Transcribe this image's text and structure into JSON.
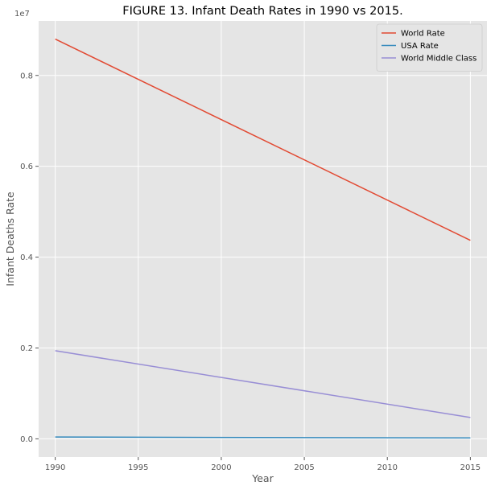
{
  "chart_data": {
    "type": "line",
    "title": "FIGURE 13. Infant Death Rates in 1990 vs 2015.",
    "xlabel": "Year",
    "ylabel": "Infant Deaths Rate",
    "offset_text": "1e7",
    "x": [
      1990,
      2015
    ],
    "xlim": [
      1989,
      2016
    ],
    "ylim": [
      -400000,
      9200000
    ],
    "x_ticks": [
      1990,
      1995,
      2000,
      2005,
      2010,
      2015
    ],
    "y_ticks": [
      0,
      2000000,
      4000000,
      6000000,
      8000000
    ],
    "y_tick_labels": [
      "0.0",
      "0.2",
      "0.4",
      "0.6",
      "0.8"
    ],
    "grid": true,
    "legend_position": "top-right",
    "series": [
      {
        "name": "World Rate",
        "color": "#E24A33",
        "values": [
          8800000,
          4370000
        ]
      },
      {
        "name": "USA Rate",
        "color": "#348ABD",
        "values": [
          40000,
          20000
        ]
      },
      {
        "name": "World Middle Class",
        "color": "#988ED5",
        "values": [
          1940000,
          470000
        ]
      }
    ]
  },
  "colors": {
    "plot_background": "#E5E5E5",
    "grid": "#FFFFFF",
    "tick_text": "#555555"
  }
}
